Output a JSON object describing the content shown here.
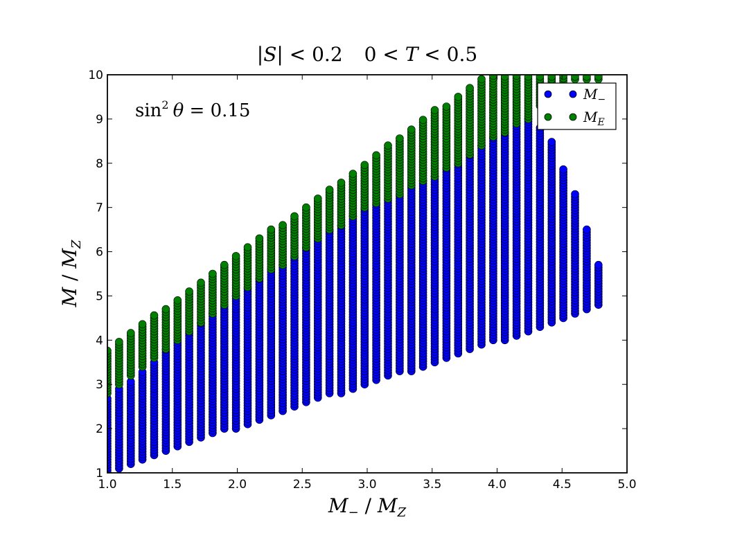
{
  "chart_data": {
    "type": "scatter",
    "title": "|S|<0.2     0<T<0.5",
    "annotation": "sin² θ = 0.15",
    "xlabel": "M− / M_Z",
    "ylabel": "M / M_Z",
    "xlim": [
      1.0,
      5.0
    ],
    "ylim": [
      1,
      10
    ],
    "xticks": [
      "1.0",
      "1.5",
      "2.0",
      "2.5",
      "3.0",
      "3.5",
      "4.0",
      "4.5",
      "5.0"
    ],
    "yticks": [
      "1",
      "2",
      "3",
      "4",
      "5",
      "6",
      "7",
      "8",
      "9",
      "10"
    ],
    "grid": false,
    "legend_position": "top-right",
    "columns_x": [
      1.0,
      1.09,
      1.18,
      1.27,
      1.36,
      1.45,
      1.54,
      1.63,
      1.72,
      1.81,
      1.9,
      1.99,
      2.08,
      2.17,
      2.26,
      2.35,
      2.44,
      2.53,
      2.62,
      2.71,
      2.8,
      2.89,
      2.98,
      3.07,
      3.16,
      3.25,
      3.34,
      3.43,
      3.52,
      3.61,
      3.7,
      3.79,
      3.88,
      3.97,
      4.06,
      4.15,
      4.24,
      4.33,
      4.42,
      4.51,
      4.6,
      4.69,
      4.78
    ],
    "series": [
      {
        "name": "M−",
        "color": "#0000ff",
        "ranges": [
          [
            1.0,
            1.0,
            2.7
          ],
          [
            1.09,
            1.1,
            2.9
          ],
          [
            1.18,
            1.2,
            3.1
          ],
          [
            1.27,
            1.3,
            3.3
          ],
          [
            1.36,
            1.4,
            3.5
          ],
          [
            1.45,
            1.5,
            3.8
          ],
          [
            1.54,
            1.6,
            4.0
          ],
          [
            1.63,
            1.7,
            4.2
          ],
          [
            1.72,
            1.8,
            4.4
          ],
          [
            1.81,
            1.9,
            4.6
          ],
          [
            1.9,
            2.0,
            4.8
          ],
          [
            1.99,
            2.0,
            5.0
          ],
          [
            2.08,
            2.1,
            5.2
          ],
          [
            2.17,
            2.2,
            5.4
          ],
          [
            2.26,
            2.3,
            5.6
          ],
          [
            2.35,
            2.4,
            5.7
          ],
          [
            2.44,
            2.5,
            5.9
          ],
          [
            2.53,
            2.6,
            6.1
          ],
          [
            2.62,
            2.7,
            6.3
          ],
          [
            2.71,
            2.8,
            6.5
          ],
          [
            2.8,
            2.8,
            6.6
          ],
          [
            2.89,
            2.9,
            6.8
          ],
          [
            2.98,
            3.0,
            7.0
          ],
          [
            3.07,
            3.1,
            7.1
          ],
          [
            3.16,
            3.2,
            7.2
          ],
          [
            3.25,
            3.3,
            7.3
          ],
          [
            3.34,
            3.3,
            7.5
          ],
          [
            3.43,
            3.4,
            7.6
          ],
          [
            3.52,
            3.5,
            7.7
          ],
          [
            3.61,
            3.6,
            7.9
          ],
          [
            3.7,
            3.7,
            8.0
          ],
          [
            3.79,
            3.8,
            8.2
          ],
          [
            3.88,
            3.9,
            8.4
          ],
          [
            3.97,
            4.0,
            8.6
          ],
          [
            4.06,
            4.0,
            8.7
          ],
          [
            4.15,
            4.1,
            8.9
          ],
          [
            4.24,
            4.2,
            9.0
          ],
          [
            4.33,
            4.3,
            8.8
          ],
          [
            4.42,
            4.4,
            8.5
          ],
          [
            4.51,
            4.5,
            7.9
          ],
          [
            4.6,
            4.6,
            7.3
          ],
          [
            4.69,
            4.7,
            6.5
          ],
          [
            4.78,
            4.8,
            5.7
          ]
        ]
      },
      {
        "name": "M_E",
        "color": "#007f00",
        "ranges": [
          [
            1.0,
            2.8,
            3.8
          ],
          [
            1.09,
            3.0,
            4.0
          ],
          [
            1.18,
            3.2,
            4.2
          ],
          [
            1.27,
            3.4,
            4.4
          ],
          [
            1.36,
            3.6,
            4.6
          ],
          [
            1.45,
            3.8,
            4.7
          ],
          [
            1.54,
            4.0,
            4.9
          ],
          [
            1.63,
            4.2,
            5.1
          ],
          [
            1.72,
            4.4,
            5.3
          ],
          [
            1.81,
            4.6,
            5.5
          ],
          [
            1.9,
            4.8,
            5.7
          ],
          [
            1.99,
            5.0,
            5.9
          ],
          [
            2.08,
            5.2,
            6.1
          ],
          [
            2.17,
            5.4,
            6.3
          ],
          [
            2.26,
            5.6,
            6.5
          ],
          [
            2.35,
            5.7,
            6.6
          ],
          [
            2.44,
            5.9,
            6.8
          ],
          [
            2.53,
            6.1,
            7.0
          ],
          [
            2.62,
            6.3,
            7.2
          ],
          [
            2.71,
            6.5,
            7.4
          ],
          [
            2.8,
            6.6,
            7.6
          ],
          [
            2.89,
            6.8,
            7.8
          ],
          [
            2.98,
            7.0,
            8.0
          ],
          [
            3.07,
            7.1,
            8.2
          ],
          [
            3.16,
            7.2,
            8.4
          ],
          [
            3.25,
            7.3,
            8.6
          ],
          [
            3.34,
            7.5,
            8.8
          ],
          [
            3.43,
            7.6,
            9.0
          ],
          [
            3.52,
            7.7,
            9.2
          ],
          [
            3.61,
            7.9,
            9.3
          ],
          [
            3.7,
            8.0,
            9.5
          ],
          [
            3.79,
            8.2,
            9.7
          ],
          [
            3.88,
            8.4,
            9.9
          ],
          [
            3.97,
            8.6,
            10.0
          ],
          [
            4.06,
            8.7,
            10.0
          ],
          [
            4.15,
            8.9,
            10.0
          ],
          [
            4.24,
            9.0,
            10.0
          ],
          [
            4.33,
            9.3,
            10.0
          ],
          [
            4.42,
            9.6,
            10.0
          ],
          [
            4.51,
            9.8,
            10.0
          ],
          [
            4.6,
            9.9,
            10.0
          ],
          [
            4.69,
            9.9,
            10.0
          ],
          [
            4.78,
            9.9,
            10.0
          ]
        ]
      }
    ]
  }
}
